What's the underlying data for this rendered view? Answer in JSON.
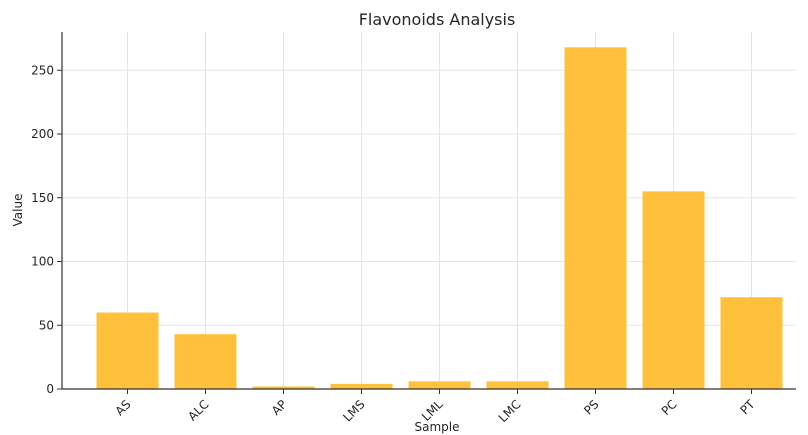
{
  "chart_data": {
    "type": "bar",
    "title": "Flavonoids Analysis",
    "xlabel": "Sample",
    "ylabel": "Value",
    "categories": [
      "AS",
      "ALC",
      "AP",
      "LMS",
      "LML",
      "LMC",
      "PS",
      "PC",
      "PT"
    ],
    "values": [
      60,
      43,
      2,
      4,
      6,
      6,
      268,
      155,
      72
    ],
    "ylim": [
      0,
      280
    ],
    "yticks": [
      0,
      50,
      100,
      150,
      200,
      250
    ],
    "grid": true,
    "bar_color": "#ffc13b"
  }
}
